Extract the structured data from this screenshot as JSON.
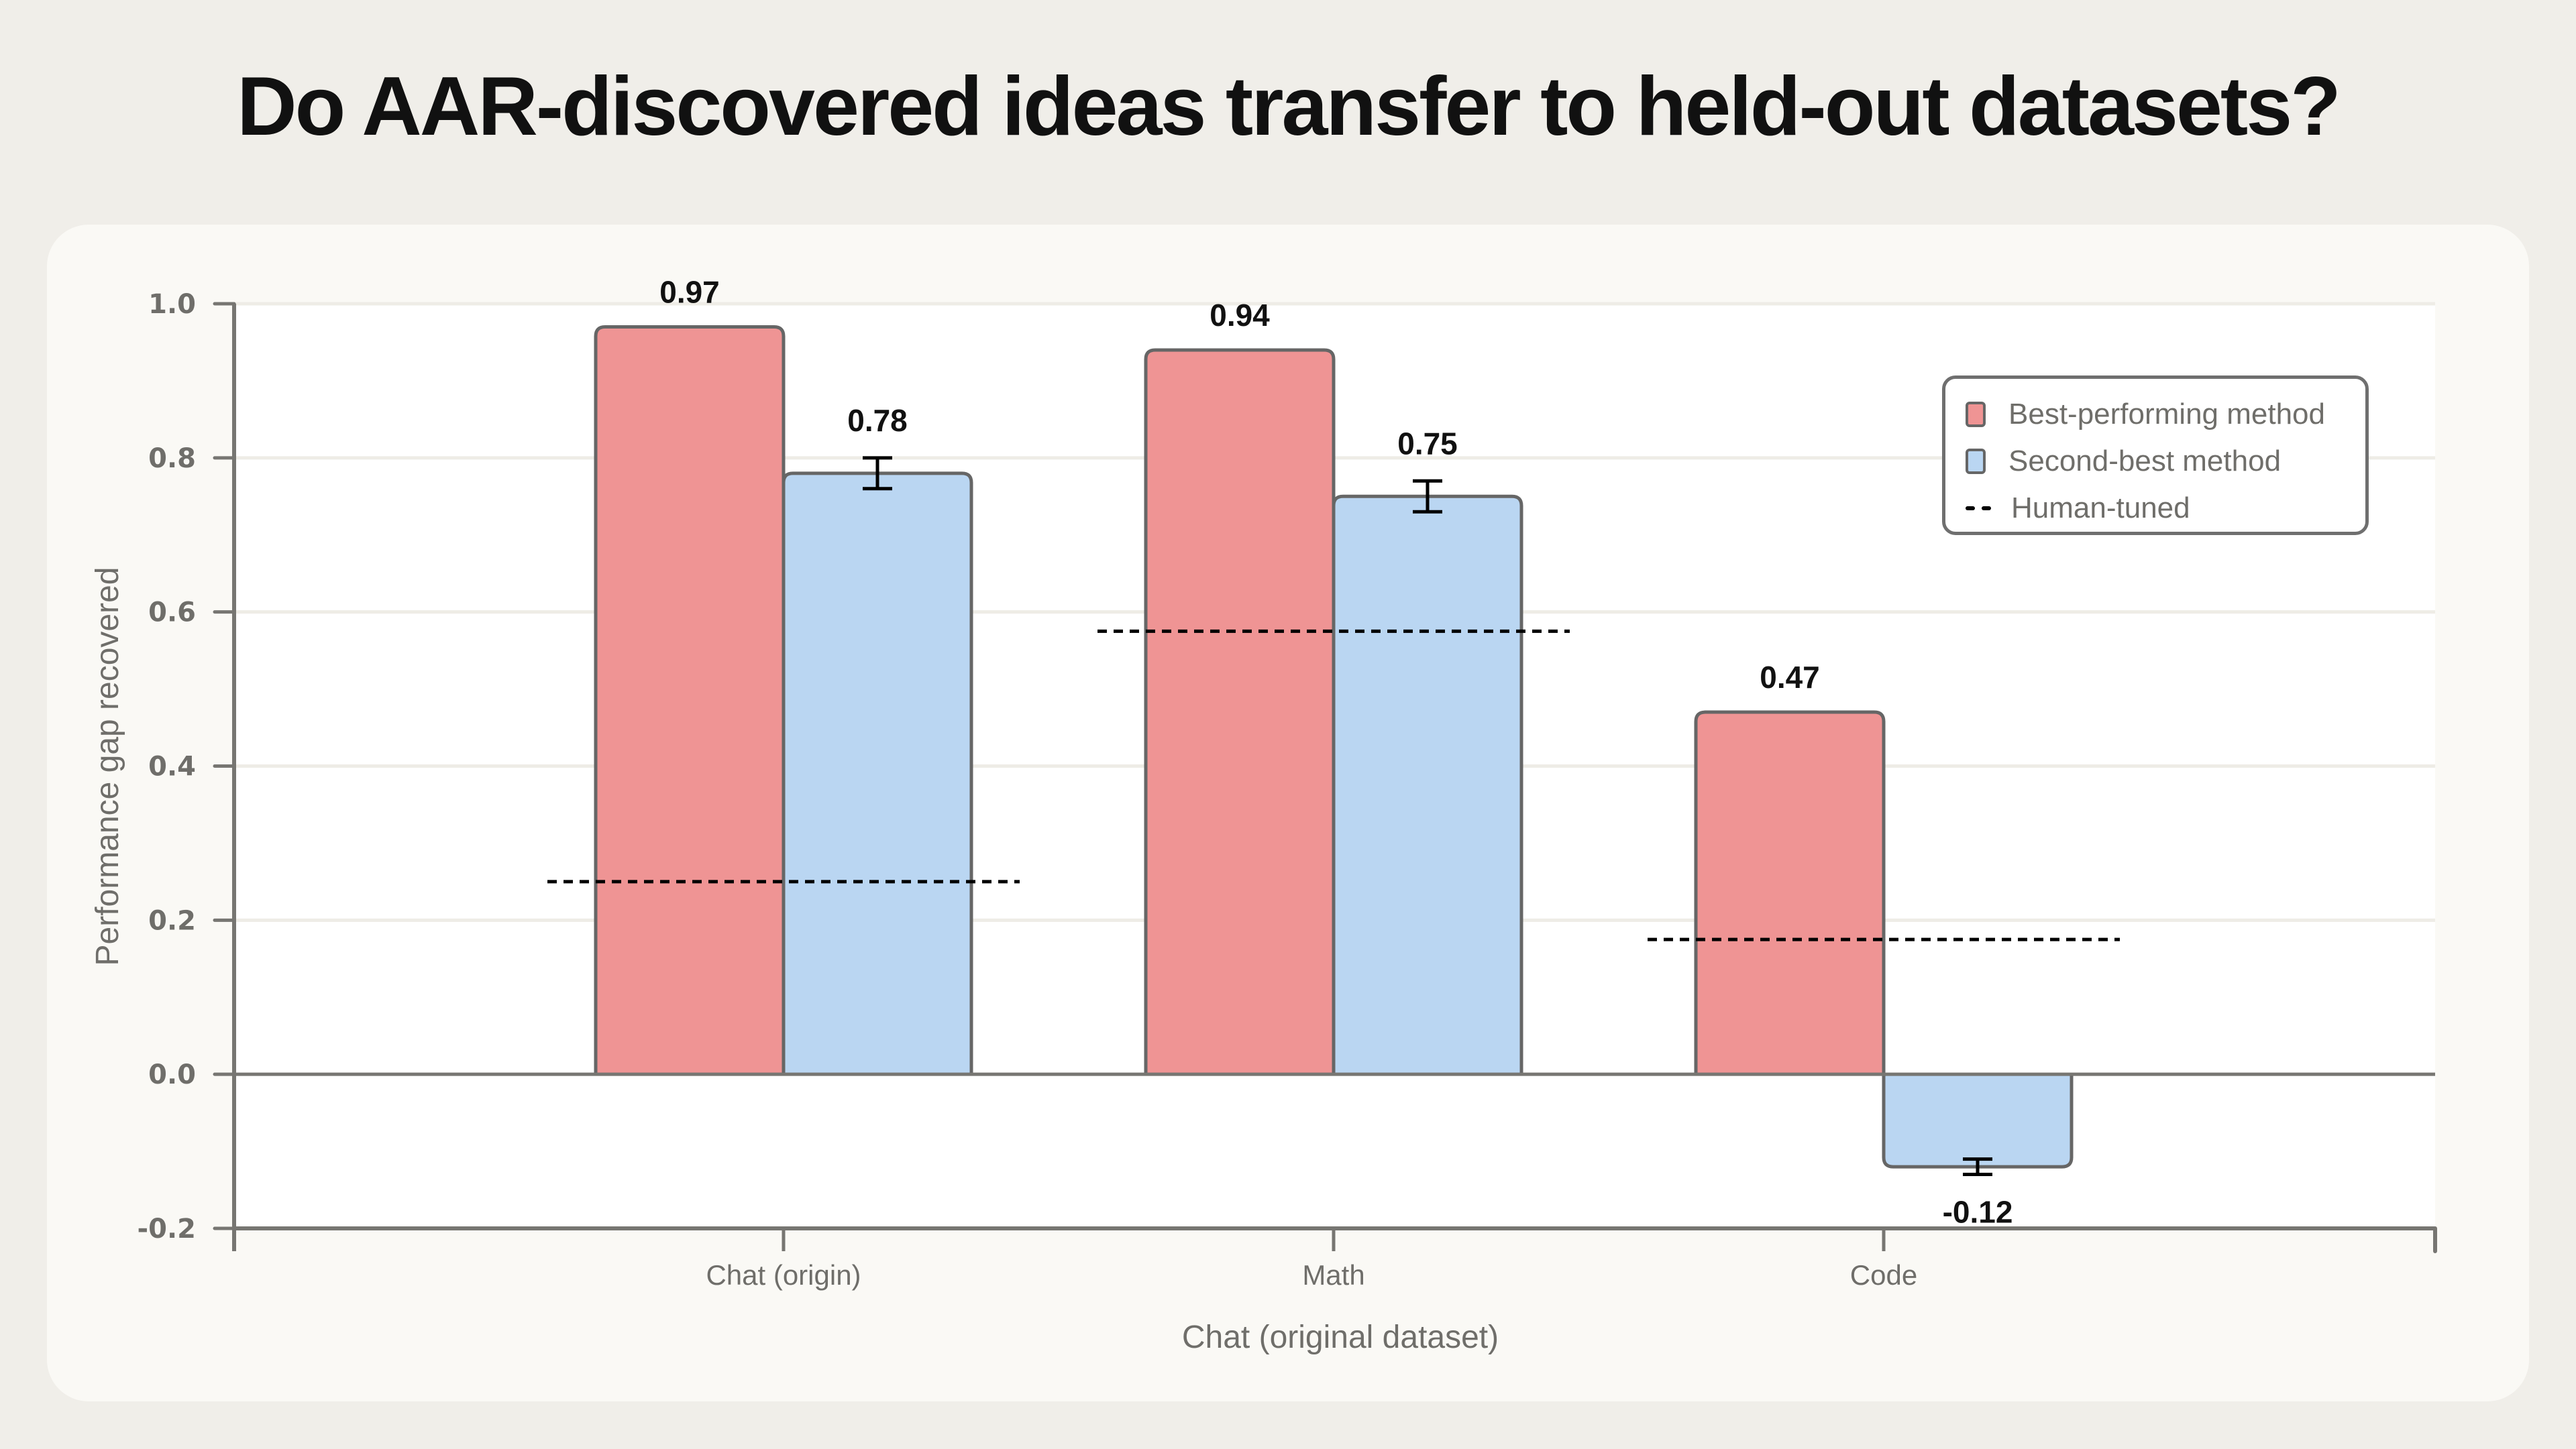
{
  "title": "Do AAR-discovered ideas transfer to held-out datasets?",
  "colors": {
    "background": "#F0EEE9",
    "panel": "#FAF9F5",
    "best": "#EF9494",
    "second": "#BAD6F2",
    "bar_edge": "#666666",
    "axis": "#777672",
    "human_line": "#000000"
  },
  "legend": {
    "items": [
      {
        "label": "Best-performing method",
        "type": "swatch",
        "color": "#EF9494"
      },
      {
        "label": "Second-best method",
        "type": "swatch",
        "color": "#BAD6F2"
      },
      {
        "label": "Human-tuned",
        "type": "dashed-line",
        "color": "#000000"
      }
    ]
  },
  "chart_data": {
    "type": "bar",
    "title": "Do AAR-discovered ideas transfer to held-out datasets?",
    "xlabel": "Chat (original dataset)",
    "ylabel": "Performance gap recovered",
    "ylim": [
      -0.2,
      1.0
    ],
    "yticks": [
      "1.0",
      "0.8",
      "0.6",
      "0.4",
      "0.2",
      "0.0",
      "-0.2"
    ],
    "grid": true,
    "legend_position": "upper right",
    "categories": [
      "Chat (origin)",
      "Math",
      "Code"
    ],
    "series": [
      {
        "name": "Best-performing method",
        "values": [
          0.97,
          0.94,
          0.47
        ],
        "labels": [
          "0.97",
          "0.94",
          "0.47"
        ],
        "error": [
          null,
          null,
          null
        ]
      },
      {
        "name": "Second-best method",
        "values": [
          0.78,
          0.75,
          -0.12
        ],
        "labels": [
          "0.78",
          "0.75",
          "-0.12"
        ],
        "error": [
          0.02,
          0.02,
          0.01
        ]
      },
      {
        "name": "Human-tuned",
        "type": "hline-dashed",
        "values": [
          0.25,
          0.575,
          0.175
        ]
      }
    ]
  }
}
